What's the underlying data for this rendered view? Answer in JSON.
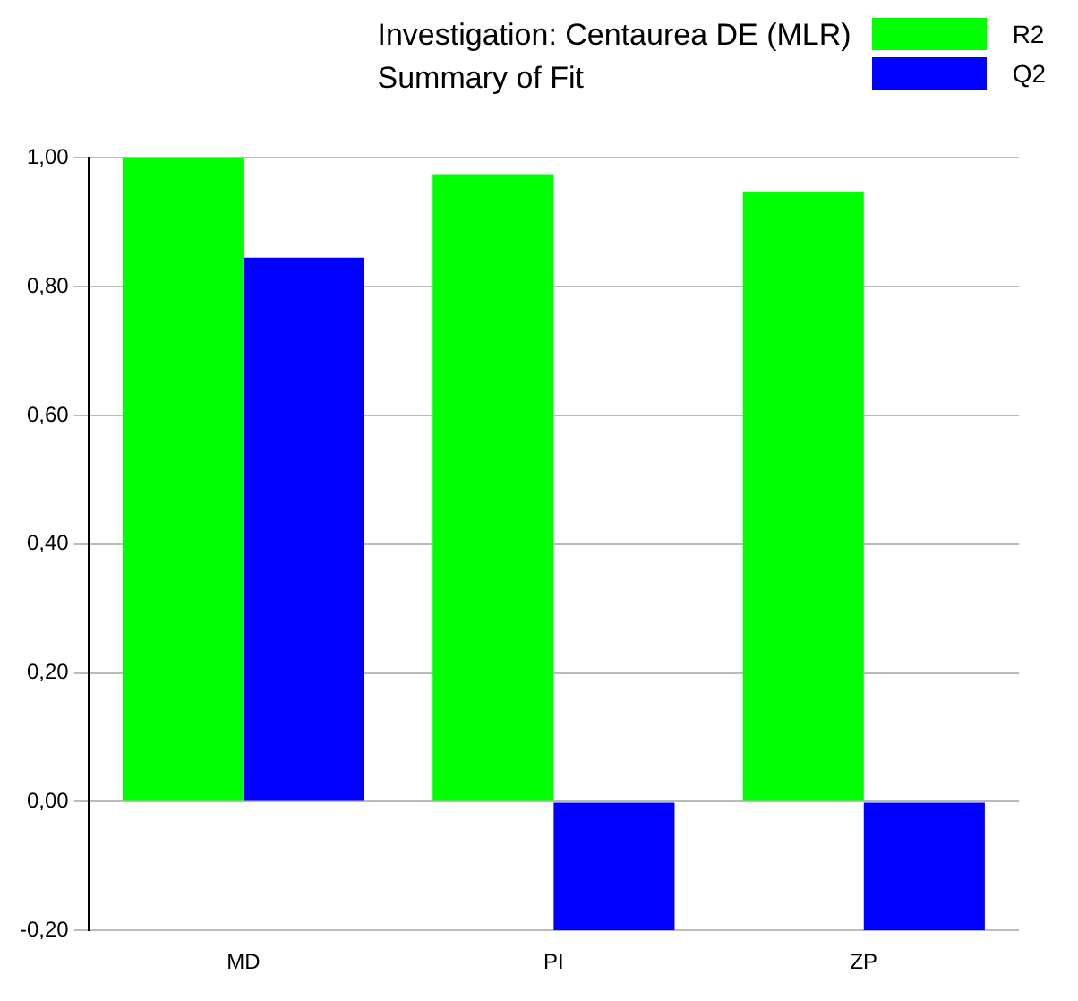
{
  "chart_data": {
    "type": "bar",
    "title": "Investigation: Centaurea DE (MLR)",
    "subtitle": "Summary of Fit",
    "categories": [
      "MD",
      "PI",
      "ZP"
    ],
    "series": [
      {
        "name": "R2",
        "color": "#00ff00",
        "values": [
          1.0,
          0.975,
          0.948
        ]
      },
      {
        "name": "Q2",
        "color": "#0000ff",
        "values": [
          0.845,
          -0.2,
          -0.2
        ]
      }
    ],
    "ylim": [
      -0.2,
      1.0
    ],
    "yticks": [
      {
        "value": -0.2,
        "label": "-0,20"
      },
      {
        "value": 0,
        "label": "0,00"
      },
      {
        "value": 0.2,
        "label": "0,20"
      },
      {
        "value": 0.4,
        "label": "0,40"
      },
      {
        "value": 0.6,
        "label": "0,60"
      },
      {
        "value": 0.8,
        "label": "0,80"
      },
      {
        "value": 1.0,
        "label": "1,00"
      }
    ],
    "grid": "y",
    "legend": "top right"
  }
}
